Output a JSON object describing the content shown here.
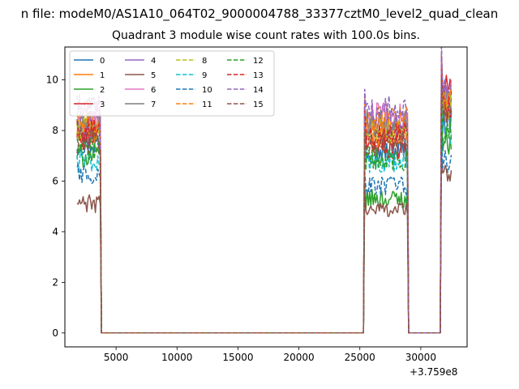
{
  "figure": {
    "suptitle": "n file: modeM0/AS1A10_064T02_9000004788_33377cztM0_level2_quad_clean",
    "title": "Quadrant 3 module wise count rates with 100.0s bins.",
    "x_offset_label": "+3.759e8"
  },
  "chart_data": {
    "type": "line",
    "title": "Quadrant 3 module wise count rates with 100.0s bins.",
    "xlabel": "",
    "ylabel": "",
    "x_offset": 375900000,
    "x_offset_label": "+3.759e8",
    "xlim": [
      800,
      33800
    ],
    "ylim": [
      -0.55,
      11.3
    ],
    "xticks": [
      5000,
      10000,
      15000,
      20000,
      25000,
      30000
    ],
    "xtick_labels": [
      "5000",
      "10000",
      "15000",
      "20000",
      "25000",
      "30000"
    ],
    "yticks": [
      0,
      2,
      4,
      6,
      8,
      10
    ],
    "ytick_labels": [
      "0",
      "2",
      "4",
      "6",
      "8",
      "10"
    ],
    "grid": false,
    "legend": {
      "placement": "top-left",
      "columns": 4
    },
    "segments": [
      {
        "name": "orbit-1-data",
        "x_start": 1800,
        "x_end": 3700,
        "step": 100
      },
      {
        "name": "saa-gap-1",
        "x_start": 3800,
        "x_end": 25300,
        "step": 100,
        "flat_value": 0
      },
      {
        "name": "orbit-2-data",
        "x_start": 25400,
        "x_end": 28900,
        "step": 100
      },
      {
        "name": "saa-gap-2",
        "x_start": 29000,
        "x_end": 31600,
        "step": 100,
        "flat_value": 0
      },
      {
        "name": "orbit-3-data",
        "x_start": 31700,
        "x_end": 32500,
        "step": 100
      }
    ],
    "series": [
      {
        "name": "0",
        "color": "#1f77b4",
        "style": "solid",
        "levels": [
          7.5,
          7.2,
          8.4
        ]
      },
      {
        "name": "1",
        "color": "#ff7f0e",
        "style": "solid",
        "levels": [
          8.0,
          7.8,
          9.0
        ]
      },
      {
        "name": "2",
        "color": "#2ca02c",
        "style": "solid",
        "levels": [
          7.0,
          5.3,
          7.6
        ]
      },
      {
        "name": "3",
        "color": "#d62728",
        "style": "solid",
        "levels": [
          7.8,
          7.4,
          9.6
        ]
      },
      {
        "name": "4",
        "color": "#9467bd",
        "style": "solid",
        "levels": [
          8.2,
          8.2,
          9.2
        ]
      },
      {
        "name": "5",
        "color": "#8c564b",
        "style": "solid",
        "levels": [
          5.1,
          4.9,
          6.2
        ]
      },
      {
        "name": "6",
        "color": "#e377c2",
        "style": "solid",
        "levels": [
          8.6,
          8.5,
          9.4
        ]
      },
      {
        "name": "7",
        "color": "#7f7f7f",
        "style": "solid",
        "levels": [
          8.3,
          8.3,
          9.1
        ]
      },
      {
        "name": "8",
        "color": "#bcbd22",
        "style": "dashed",
        "levels": [
          8.1,
          7.9,
          8.9
        ]
      },
      {
        "name": "9",
        "color": "#17becf",
        "style": "dashed",
        "levels": [
          6.8,
          6.8,
          7.8
        ]
      },
      {
        "name": "10",
        "color": "#1f77b4",
        "style": "dashed",
        "levels": [
          6.3,
          5.8,
          6.8
        ]
      },
      {
        "name": "11",
        "color": "#ff7f0e",
        "style": "dashed",
        "levels": [
          8.2,
          8.4,
          9.2
        ]
      },
      {
        "name": "12",
        "color": "#2ca02c",
        "style": "dashed",
        "levels": [
          7.3,
          6.9,
          8.0
        ]
      },
      {
        "name": "13",
        "color": "#d62728",
        "style": "dashed",
        "levels": [
          7.9,
          7.8,
          9.0
        ]
      },
      {
        "name": "14",
        "color": "#9467bd",
        "style": "dashed",
        "levels": [
          8.8,
          8.8,
          9.8
        ]
      },
      {
        "name": "15",
        "color": "#8c564b",
        "style": "dashed",
        "levels": [
          7.6,
          7.5,
          8.6
        ]
      }
    ]
  }
}
